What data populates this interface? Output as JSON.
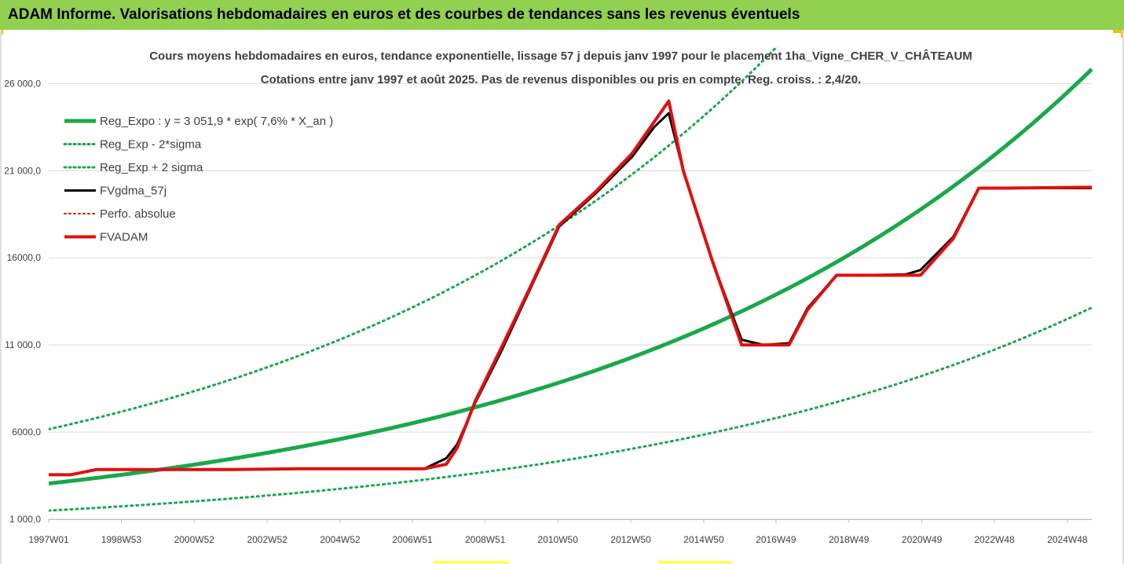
{
  "header": {
    "title": "ADAM Informe. Valorisations hebdomadaires en euros et des courbes de tendances sans les revenus éventuels"
  },
  "colors": {
    "title_bg": "#92d050",
    "green": "#19a84a",
    "red": "#e01010",
    "black": "#000000",
    "grid": "#d9d9d9"
  },
  "chart_data": {
    "type": "line",
    "subtitle_lines": [
      "Cours moyens hebdomadaires en euros, tendance exponentielle, lissage 57 j depuis janv 1997 pour le placement 1ha_Vigne_CHER_V_CHÂTEAUM",
      "Cotations entre janv 1997 et août 2025. Pas de revenus disponibles ou pris en compte. Reg. croiss. : 2,4/20."
    ],
    "x_range": [
      1997.0,
      2025.6
    ],
    "ylim": [
      1000,
      28000
    ],
    "yticks": [
      1000,
      6000,
      11000,
      16000,
      21000,
      26000
    ],
    "ytick_labels": [
      "1 000,0",
      "6000,0",
      "11 000,0",
      "16000,0",
      "21 000,0",
      "26 000,0"
    ],
    "xticks": [
      1997.0,
      1998.99,
      2000.99,
      2002.99,
      2004.99,
      2006.97,
      2008.97,
      2010.96,
      2012.96,
      2014.96,
      2016.94,
      2018.94,
      2020.94,
      2022.93,
      2024.93
    ],
    "xtick_labels": [
      "1997W01",
      "1998W53",
      "2000W52",
      "2002W52",
      "2004W52",
      "2006W51",
      "2008W51",
      "2010W50",
      "2012W50",
      "2014W50",
      "2016W49",
      "2018W49",
      "2020W49",
      "2022W48",
      "2024W48"
    ],
    "grid": true,
    "legend_position": "top-left",
    "legend": [
      {
        "label": "Reg_Expo : y = 3 051,9 * exp( 7,6% *  X_an )",
        "color": "#19a84a",
        "style": "solid",
        "width": 5
      },
      {
        "label": "Reg_Exp - 2*sigma",
        "color": "#19a84a",
        "style": "dotted",
        "width": 3
      },
      {
        "label": "Reg_Exp + 2 sigma",
        "color": "#19a84a",
        "style": "dotted",
        "width": 3
      },
      {
        "label": "FVgdma_57j",
        "color": "#000000",
        "style": "solid",
        "width": 3
      },
      {
        "label": "Perfo. absolue",
        "color": "#e01010",
        "style": "dotted",
        "width": 2
      },
      {
        "label": "FVADAM",
        "color": "#e01010",
        "style": "solid",
        "width": 4
      }
    ],
    "trend": {
      "a": 3051.9,
      "b": 0.076,
      "lower_factor": 0.49,
      "upper_factor": 2.02
    },
    "series": [
      {
        "name": "FVgdma_57j",
        "x": [
          1997.0,
          1997.6,
          1998.3,
          1999.5,
          2002.0,
          2004.0,
          2006.0,
          2007.3,
          2007.9,
          2008.2,
          2008.7,
          2009.4,
          2010.2,
          2011.0,
          2012.0,
          2013.0,
          2013.6,
          2014.0,
          2014.4,
          2015.2,
          2016.0,
          2016.6,
          2017.3,
          2017.8,
          2018.6,
          2019.2,
          2020.5,
          2020.9,
          2021.8,
          2022.5,
          2023.2,
          2025.6
        ],
        "y": [
          3550,
          3550,
          3850,
          3850,
          3850,
          3900,
          3900,
          3900,
          4500,
          5300,
          7700,
          10600,
          14200,
          17800,
          19700,
          21800,
          23500,
          24300,
          21000,
          15800,
          11300,
          11000,
          11100,
          13100,
          15000,
          15000,
          15050,
          15300,
          17200,
          20000,
          20000,
          20000
        ]
      },
      {
        "name": "FVADAM",
        "x": [
          1997.0,
          1997.6,
          1998.3,
          1999.5,
          2002.0,
          2004.0,
          2006.0,
          2007.3,
          2007.9,
          2008.2,
          2008.7,
          2009.4,
          2010.2,
          2011.0,
          2012.0,
          2013.0,
          2013.6,
          2014.0,
          2014.4,
          2015.2,
          2016.0,
          2016.6,
          2017.3,
          2017.8,
          2018.6,
          2019.2,
          2020.5,
          2020.9,
          2021.8,
          2022.5,
          2023.2,
          2025.6
        ],
        "y": [
          3550,
          3550,
          3850,
          3850,
          3850,
          3900,
          3900,
          3900,
          4150,
          5100,
          7800,
          10800,
          14300,
          17900,
          19800,
          22000,
          23800,
          25000,
          21000,
          15800,
          11000,
          11000,
          11000,
          13000,
          15000,
          15000,
          15000,
          15000,
          17100,
          20000,
          20000,
          20050
        ]
      }
    ]
  }
}
